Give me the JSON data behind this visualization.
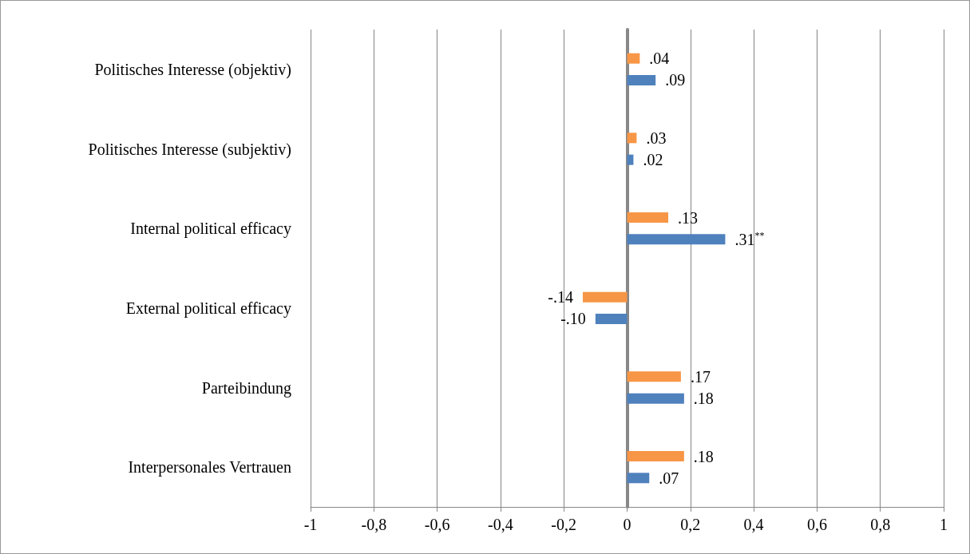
{
  "chart_data": {
    "type": "bar",
    "orientation": "horizontal",
    "categories": [
      "Politisches Interesse (objektiv)",
      "Politisches Interesse (subjektiv)",
      "Internal political efficacy",
      "External political efficacy",
      "Parteibindung",
      "Interpersonales Vertrauen"
    ],
    "series": [
      {
        "color": "#f79646",
        "values": [
          0.04,
          0.03,
          0.13,
          -0.14,
          0.17,
          0.18
        ],
        "value_labels": [
          ".04",
          ".03",
          ".13",
          "-.14",
          ".17",
          ".18"
        ]
      },
      {
        "color": "#4f81bd",
        "values": [
          0.09,
          0.02,
          0.31,
          -0.1,
          0.18,
          0.07
        ],
        "value_labels": [
          ".09",
          ".02",
          ".31$^{**}$",
          "-.10",
          ".18",
          ".07"
        ]
      }
    ],
    "xlim": [
      -1,
      1
    ],
    "xticks": [
      -1,
      {
        "value": -0.8,
        "label": "-0,8"
      },
      {
        "value": -0.6,
        "label": "-0,6"
      },
      {
        "value": -0.4,
        "label": "-0,4"
      },
      {
        "value": -0.2,
        "label": "-0,2"
      },
      0,
      {
        "value": 0.2,
        "label": "0,2"
      },
      {
        "value": 0.4,
        "label": "0,4"
      },
      {
        "value": 0.6,
        "label": "0,6"
      },
      {
        "value": 0.8,
        "label": "0,8"
      },
      1
    ],
    "grid": "x"
  }
}
